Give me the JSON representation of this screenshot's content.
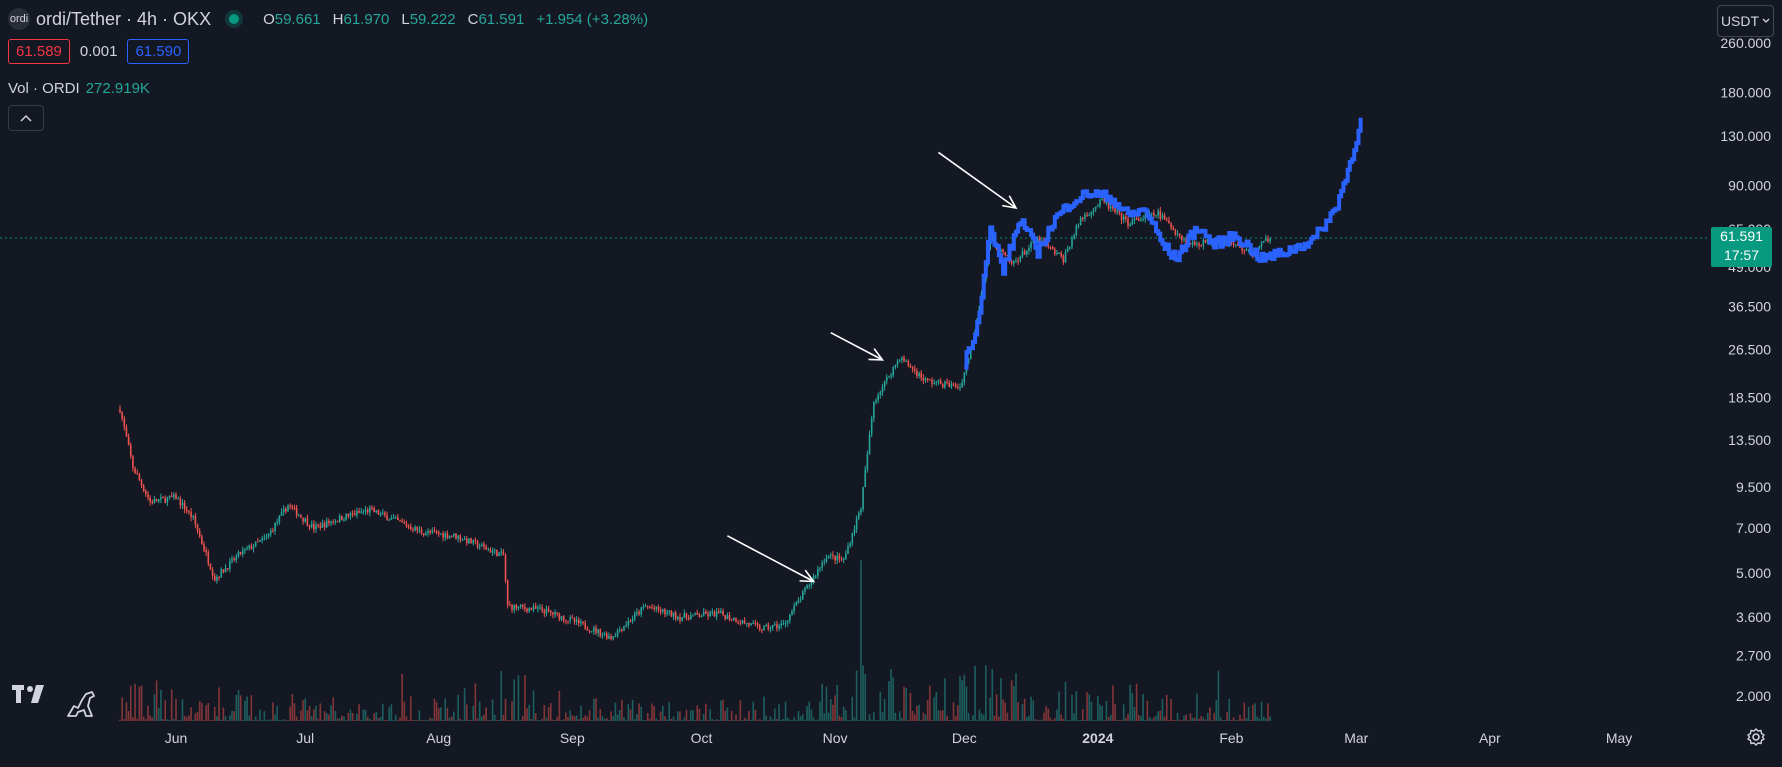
{
  "header": {
    "symbol_icon": "ordi-coin-icon",
    "symbol_icon_text": "ordi",
    "title": "ordi/Tether · 4h · OKX",
    "open_label": "O",
    "open": "59.661",
    "high_label": "H",
    "high": "61.970",
    "low_label": "L",
    "low": "59.222",
    "close_label": "C",
    "close": "61.591",
    "change": "+1.954 (+3.28%)"
  },
  "prices": {
    "bid": "61.589",
    "spread": "0.001",
    "ask": "61.590"
  },
  "volume": {
    "label": "Vol · ORDI",
    "value": "272.919K"
  },
  "currency_button": "USDT",
  "last_price": {
    "value": "61.591",
    "countdown": "17:57"
  },
  "colors": {
    "up": "#26a69a",
    "down": "#ef5350",
    "projection": "#2962ff",
    "background": "#141823",
    "grid_text": "#d1d4dc"
  },
  "chart_data": {
    "type": "candlestick",
    "scale": "log",
    "ylim": [
      1.7,
      300
    ],
    "y_ticks": [
      "260.000",
      "180.000",
      "130.000",
      "90.000",
      "65.000",
      "49.000",
      "36.500",
      "26.500",
      "18.500",
      "13.500",
      "9.500",
      "7.000",
      "5.000",
      "3.600",
      "2.700",
      "2.000"
    ],
    "y_tick_values": [
      260,
      180,
      130,
      90,
      65,
      49,
      36.5,
      26.5,
      18.5,
      13.5,
      9.5,
      7,
      5,
      3.6,
      2.7,
      2
    ],
    "x_ticks": [
      "Jun",
      "Jul",
      "Aug",
      "Sep",
      "Oct",
      "Nov",
      "Dec",
      "2024",
      "Feb",
      "Mar",
      "Apr",
      "May"
    ],
    "x_tick_dates": [
      "2023-06-01",
      "2023-07-01",
      "2023-08-01",
      "2023-09-01",
      "2023-10-01",
      "2023-11-01",
      "2023-12-01",
      "2024-01-01",
      "2024-02-01",
      "2024-03-01",
      "2024-04-01",
      "2024-05-01"
    ],
    "xlim": [
      "2023-05-19",
      "2024-05-01"
    ],
    "price_path": [
      [
        "2023-05-19",
        17
      ],
      [
        "2023-05-22",
        11
      ],
      [
        "2023-05-26",
        8.5
      ],
      [
        "2023-06-01",
        8.8
      ],
      [
        "2023-06-05",
        7.5
      ],
      [
        "2023-06-10",
        4.8
      ],
      [
        "2023-06-16",
        5.8
      ],
      [
        "2023-06-22",
        6.5
      ],
      [
        "2023-06-27",
        8.3
      ],
      [
        "2023-07-03",
        7.0
      ],
      [
        "2023-07-10",
        7.6
      ],
      [
        "2023-07-16",
        8.0
      ],
      [
        "2023-07-22",
        7.4
      ],
      [
        "2023-07-28",
        6.8
      ],
      [
        "2023-08-05",
        6.6
      ],
      [
        "2023-08-12",
        6.0
      ],
      [
        "2023-08-16",
        5.7
      ],
      [
        "2023-08-17",
        3.9
      ],
      [
        "2023-08-25",
        3.8
      ],
      [
        "2023-09-01",
        3.5
      ],
      [
        "2023-09-10",
        3.1
      ],
      [
        "2023-09-18",
        3.9
      ],
      [
        "2023-09-26",
        3.6
      ],
      [
        "2023-10-05",
        3.7
      ],
      [
        "2023-10-15",
        3.3
      ],
      [
        "2023-10-20",
        3.4
      ],
      [
        "2023-10-26",
        4.6
      ],
      [
        "2023-10-30",
        5.7
      ],
      [
        "2023-11-03",
        5.5
      ],
      [
        "2023-11-07",
        8.2
      ],
      [
        "2023-11-10",
        18
      ],
      [
        "2023-11-16",
        25
      ],
      [
        "2023-11-22",
        21
      ],
      [
        "2023-11-30",
        20
      ],
      [
        "2023-12-03",
        28
      ],
      [
        "2023-12-07",
        60
      ],
      [
        "2023-12-12",
        50
      ],
      [
        "2023-12-18",
        60
      ],
      [
        "2023-12-24",
        52
      ],
      [
        "2023-12-28",
        70
      ],
      [
        "2024-01-02",
        80
      ],
      [
        "2024-01-08",
        68
      ],
      [
        "2024-01-15",
        73
      ],
      [
        "2024-01-22",
        58
      ],
      [
        "2024-01-30",
        60
      ],
      [
        "2024-02-06",
        54
      ],
      [
        "2024-02-10",
        61.6
      ]
    ],
    "projection_path": [
      [
        "2023-12-01",
        24
      ],
      [
        "2023-12-04",
        32
      ],
      [
        "2023-12-07",
        65
      ],
      [
        "2023-12-10",
        48
      ],
      [
        "2023-12-14",
        70
      ],
      [
        "2023-12-18",
        55
      ],
      [
        "2023-12-22",
        70
      ],
      [
        "2023-12-26",
        80
      ],
      [
        "2023-12-30",
        85
      ],
      [
        "2024-01-04",
        82
      ],
      [
        "2024-01-08",
        72
      ],
      [
        "2024-01-12",
        75
      ],
      [
        "2024-01-16",
        58
      ],
      [
        "2024-01-19",
        52
      ],
      [
        "2024-01-24",
        66
      ],
      [
        "2024-01-28",
        58
      ],
      [
        "2024-02-02",
        62
      ],
      [
        "2024-02-08",
        52
      ],
      [
        "2024-02-14",
        55
      ],
      [
        "2024-02-20",
        60
      ],
      [
        "2024-02-25",
        75
      ],
      [
        "2024-02-28",
        100
      ],
      [
        "2024-03-02",
        145
      ]
    ],
    "volume_path": [
      [
        "2023-05-19",
        0.55
      ],
      [
        "2023-06-10",
        0.45
      ],
      [
        "2023-07-01",
        0.35
      ],
      [
        "2023-08-01",
        0.3
      ],
      [
        "2023-08-17",
        0.75
      ],
      [
        "2023-09-01",
        0.3
      ],
      [
        "2023-10-01",
        0.25
      ],
      [
        "2023-10-26",
        0.4
      ],
      [
        "2023-11-08",
        1.0
      ],
      [
        "2023-11-20",
        0.5
      ],
      [
        "2023-12-08",
        0.8
      ],
      [
        "2023-12-20",
        0.5
      ],
      [
        "2024-01-01",
        0.55
      ],
      [
        "2024-01-20",
        0.4
      ],
      [
        "2024-02-10",
        0.25
      ]
    ],
    "arrows": [
      {
        "from": [
          "2023-10-07",
          6.6
        ],
        "to": [
          "2023-10-27",
          4.7
        ]
      },
      {
        "from": [
          "2023-10-31",
          30
        ],
        "to": [
          "2023-11-12",
          24.5
        ]
      },
      {
        "from": [
          "2023-11-25",
          115
        ],
        "to": [
          "2023-12-13",
          76
        ]
      }
    ]
  }
}
